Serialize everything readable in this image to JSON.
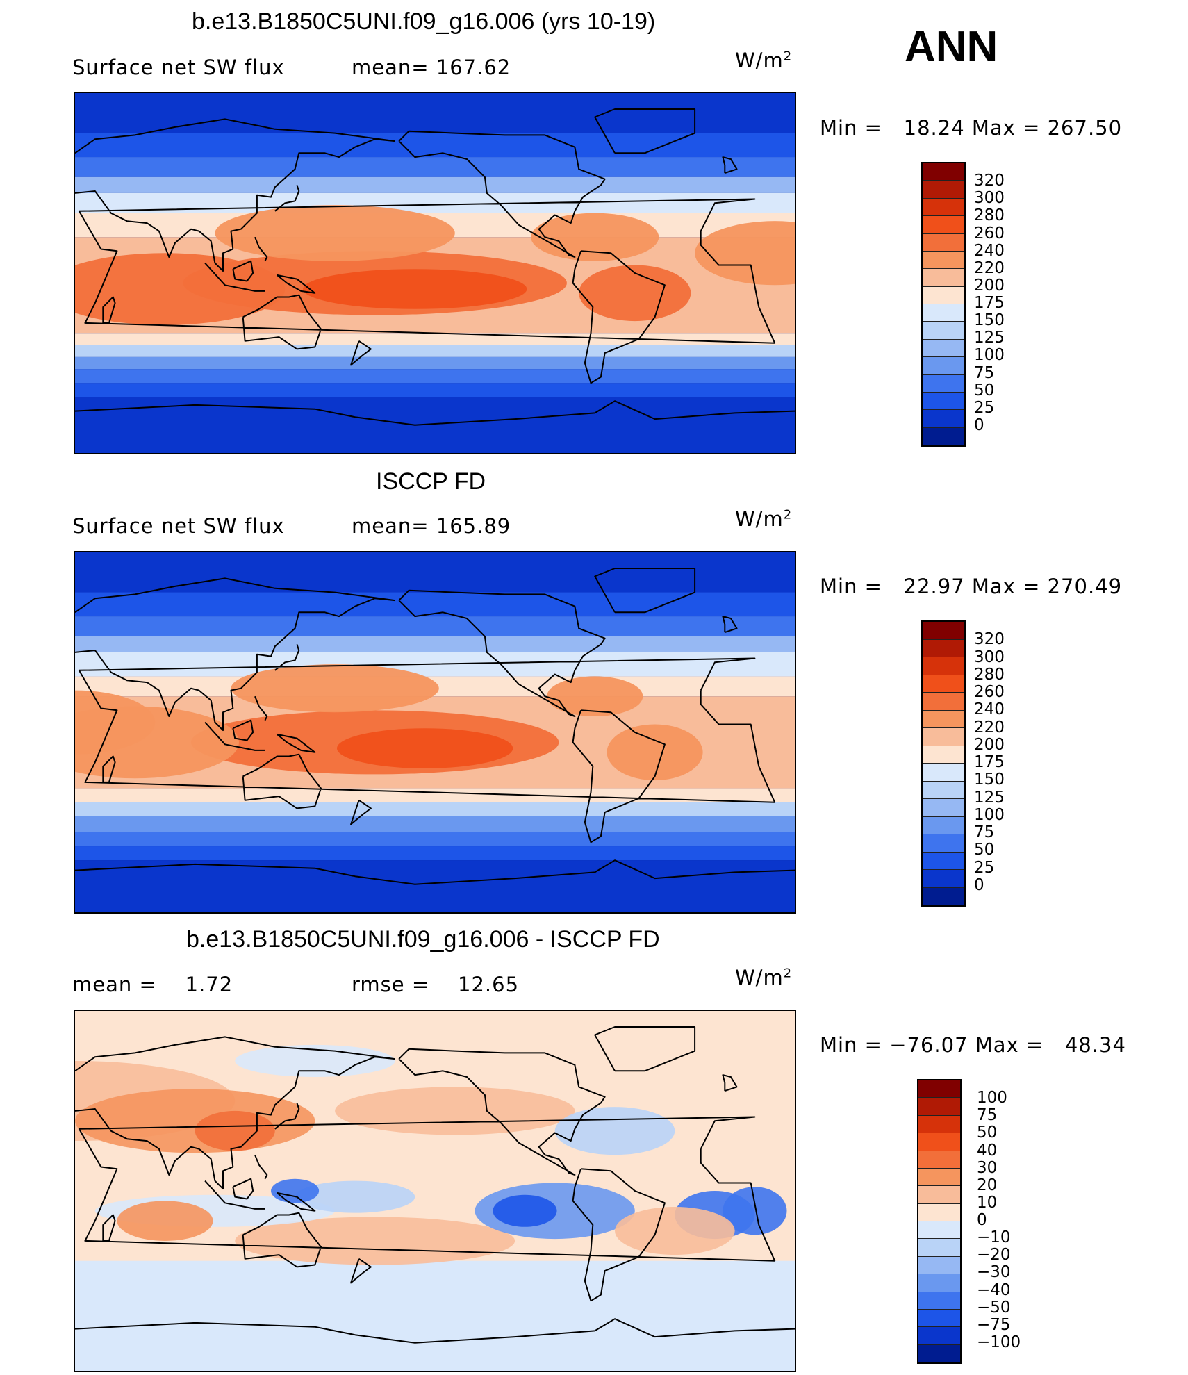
{
  "header": {
    "season": "ANN"
  },
  "panels": [
    {
      "title": "b.e13.B1850C5UNI.f09_g16.006 (yrs 10-19)",
      "left_label": "Surface net SW flux",
      "mid_label": "mean=",
      "mid_value": "167.62",
      "unit_base": "W/m",
      "unit_exp": "2",
      "min_label": "Min =",
      "min_value": "18.24",
      "max_label": "Max =",
      "max_value": "267.50",
      "field": "model"
    },
    {
      "title": "ISCCP FD",
      "left_label": "Surface net SW flux",
      "mid_label": "mean=",
      "mid_value": "165.89",
      "unit_base": "W/m",
      "unit_exp": "2",
      "min_label": "Min =",
      "min_value": "22.97",
      "max_label": "Max =",
      "max_value": "270.49",
      "field": "obs"
    },
    {
      "title": "b.e13.B1850C5UNI.f09_g16.006 - ISCCP FD",
      "left_label": "mean =",
      "left_value": "1.72",
      "mid_label": "rmse =",
      "mid_value": "12.65",
      "unit_base": "W/m",
      "unit_exp": "2",
      "min_label": "Min =",
      "min_value": "−76.07",
      "max_label": "Max =",
      "max_value": "48.34",
      "field": "diff"
    }
  ],
  "colorbars": {
    "absolute": {
      "levels": [
        "320",
        "300",
        "280",
        "260",
        "240",
        "220",
        "200",
        "175",
        "150",
        "125",
        "100",
        "75",
        "50",
        "25",
        "0"
      ],
      "colors": [
        "#800000",
        "#b01a05",
        "#d6320a",
        "#f0501a",
        "#f26f3a",
        "#f5955e",
        "#f8bc9a",
        "#fde4d1",
        "#d9e8fb",
        "#b9d3f7",
        "#96b8f3",
        "#6a98ef",
        "#3e74ee",
        "#1d55e8",
        "#0a36cc",
        "#001c90"
      ]
    },
    "difference": {
      "levels": [
        "100",
        "75",
        "50",
        "40",
        "30",
        "20",
        "10",
        "0",
        "−10",
        "−20",
        "−30",
        "−40",
        "−50",
        "−75",
        "−100"
      ],
      "colors": [
        "#800000",
        "#b01a05",
        "#d6320a",
        "#f0501a",
        "#f26f3a",
        "#f5955e",
        "#f8bc9a",
        "#fde4d1",
        "#d9e8fb",
        "#b9d3f7",
        "#96b8f3",
        "#6a98ef",
        "#3e74ee",
        "#1d55e8",
        "#0a36cc",
        "#001c90"
      ]
    }
  }
}
